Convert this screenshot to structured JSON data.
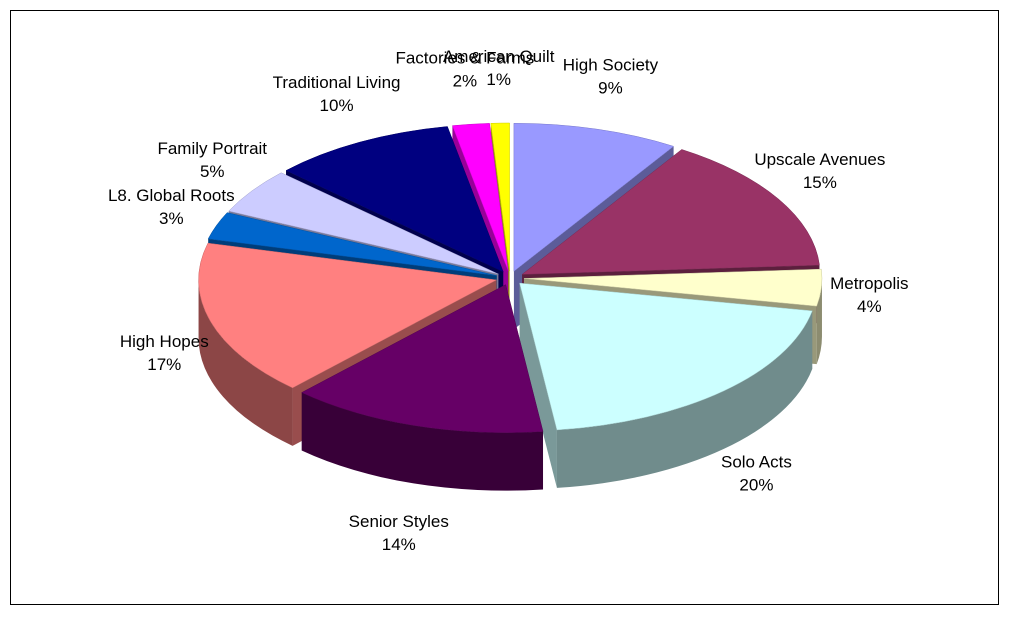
{
  "chart_data": {
    "type": "pie3d",
    "categories": [
      "High Society",
      "Upscale Avenues",
      "Metropolis",
      "Solo Acts",
      "Senior Styles",
      "High Hopes",
      "L8. Global Roots",
      "Family Portrait",
      "Traditional Living",
      "Factories & Farms",
      "American Quilt"
    ],
    "values": [
      9,
      15,
      4,
      20,
      14,
      17,
      3,
      5,
      10,
      2,
      1
    ],
    "value_labels": [
      "9%",
      "15%",
      "4%",
      "20%",
      "14%",
      "17%",
      "3%",
      "5%",
      "10%",
      "2%",
      "1%"
    ],
    "colors": [
      "#9999ff",
      "#993366",
      "#ffffcc",
      "#ccffff",
      "#660066",
      "#ff8080",
      "#0066cc",
      "#ccccff",
      "#000080",
      "#ff00ff",
      "#ffff00"
    ]
  }
}
